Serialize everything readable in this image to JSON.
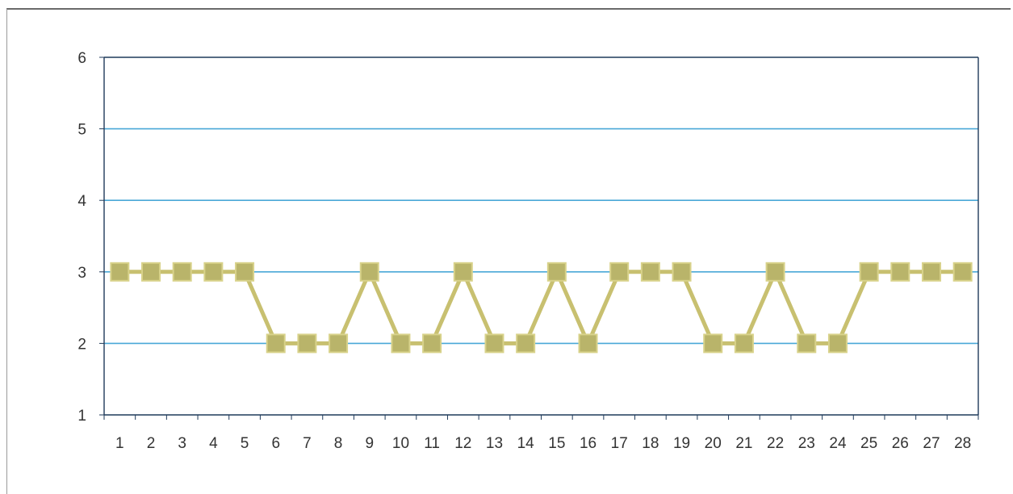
{
  "chart_data": {
    "type": "line",
    "title": "",
    "xlabel": "",
    "ylabel": "",
    "x": [
      1,
      2,
      3,
      4,
      5,
      6,
      7,
      8,
      9,
      10,
      11,
      12,
      13,
      14,
      15,
      16,
      17,
      18,
      19,
      20,
      21,
      22,
      23,
      24,
      25,
      26,
      27,
      28
    ],
    "x_tick_labels": [
      "1",
      "2",
      "3",
      "4",
      "5",
      "6",
      "7",
      "8",
      "9",
      "10",
      "11",
      "12",
      "13",
      "14",
      "15",
      "16",
      "17",
      "18",
      "19",
      "20",
      "21",
      "22",
      "23",
      "24",
      "25",
      "26",
      "27",
      "28"
    ],
    "y_ticks": [
      1,
      2,
      3,
      4,
      5,
      6
    ],
    "ylim": [
      1,
      6
    ],
    "grid": true,
    "legend": "none",
    "series": [
      {
        "values": [
          3,
          3,
          3,
          3,
          3,
          2,
          2,
          2,
          3,
          2,
          2,
          3,
          2,
          2,
          3,
          2,
          3,
          3,
          3,
          2,
          2,
          3,
          2,
          2,
          3,
          3,
          3,
          3
        ]
      }
    ],
    "colors": {
      "gridline": "#4aa8d8",
      "axis": "#1f3a5a",
      "line": "#c8c070",
      "marker_fill": "#b9b46a",
      "marker_stroke": "#d8d28a"
    }
  }
}
